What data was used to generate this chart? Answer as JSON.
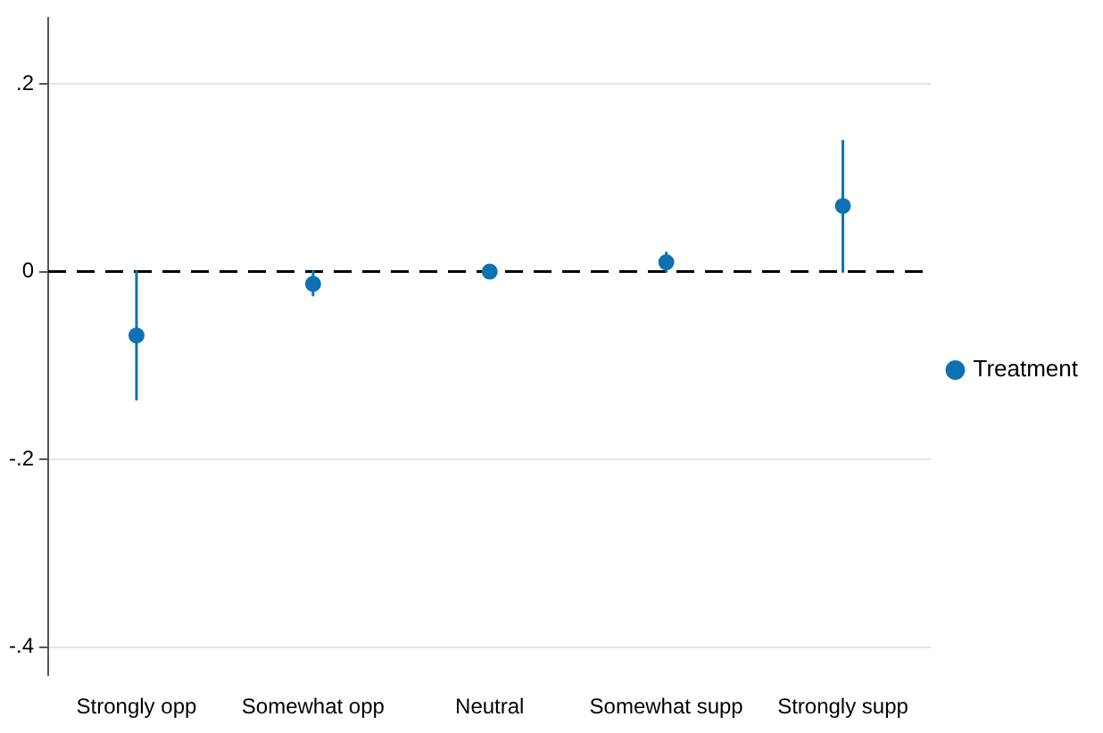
{
  "chart_data": {
    "type": "scatter",
    "categories": [
      "Strongly opp",
      "Somewhat opp",
      "Neutral",
      "Somewhat supp",
      "Strongly supp"
    ],
    "series": [
      {
        "name": "Treatment",
        "color": "#0e72b2",
        "values": [
          -0.068,
          -0.013,
          0,
          0.01,
          0.07
        ],
        "errors": [
          [
            -0.136,
            0
          ],
          [
            -0.025,
            0
          ],
          null,
          [
            0,
            0.02
          ],
          [
            0,
            0.139
          ]
        ]
      }
    ],
    "ylim": [
      -0.43,
      0.27
    ],
    "yticks": [
      {
        "value": -0.4,
        "label": "-.4"
      },
      {
        "value": -0.2,
        "label": "-.2"
      },
      {
        "value": 0,
        "label": "0"
      },
      {
        "value": 0.2,
        "label": ".2"
      }
    ],
    "ref_lines": [
      {
        "axis": "y",
        "value": 0,
        "color": "#000000",
        "line_style": "dashed"
      }
    ],
    "grid": "y",
    "legend": "right",
    "marker": "circle"
  }
}
